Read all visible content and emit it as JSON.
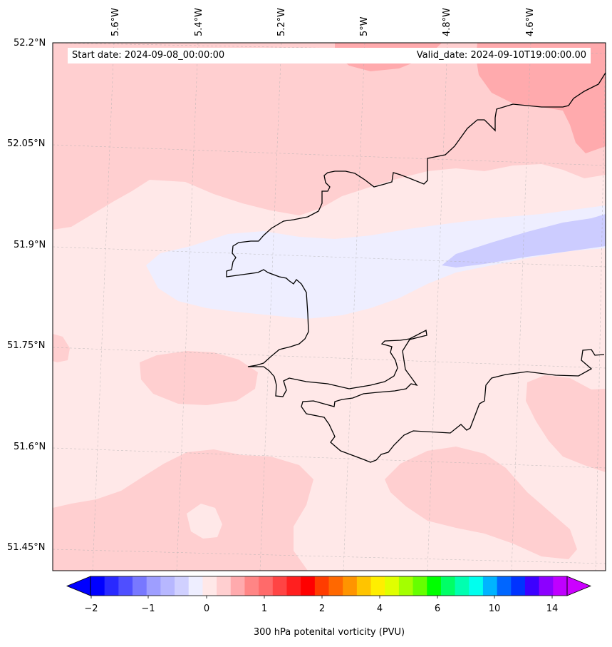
{
  "map": {
    "start_label": "Start date: 2024-09-08_00:00:00",
    "valid_label": "Valid_date: 2024-09-10T19:00:00.00",
    "lat_labels": [
      "52.2°N",
      "52.05°N",
      "51.9°N",
      "51.75°N",
      "51.6°N",
      "51.45°N"
    ],
    "lon_labels": [
      "5.6°W",
      "5.4°W",
      "5.2°W",
      "5°W",
      "4.8°W",
      "4.6°W"
    ],
    "fill_colors": {
      "near_zero_positive": "#ffe8e8",
      "low_positive": "#ffcfd0",
      "moderate_positive": "#ffaaad",
      "slightly_negative": "#eeeeff",
      "negative": "#ccccff"
    }
  },
  "colorbar": {
    "title": "300 hPa potenital vorticity (PVU)",
    "tick_labels": [
      "−2",
      "−1",
      "0",
      "1",
      "2",
      "4",
      "6",
      "10",
      "14"
    ],
    "colors": [
      "#0000ff",
      "#2929ff",
      "#4f4fff",
      "#7878ff",
      "#9e9eff",
      "#b7b7ff",
      "#d0d0ff",
      "#eeeeff",
      "#ffe8e8",
      "#ffcfd0",
      "#ffaaad",
      "#ff8585",
      "#ff6a6a",
      "#ff4444",
      "#ff1f1f",
      "#ff0000",
      "#ff3c00",
      "#ff6800",
      "#ff9400",
      "#ffc400",
      "#ffee00",
      "#e0ff00",
      "#a4ff00",
      "#66ff00",
      "#00ff00",
      "#00ff66",
      "#00ffb0",
      "#00ffee",
      "#00b4ff",
      "#0066ff",
      "#0033ff",
      "#3c00ff",
      "#8c00ff",
      "#bf00ff"
    ],
    "under_color": "#0000ff",
    "over_color": "#cc00ff"
  }
}
